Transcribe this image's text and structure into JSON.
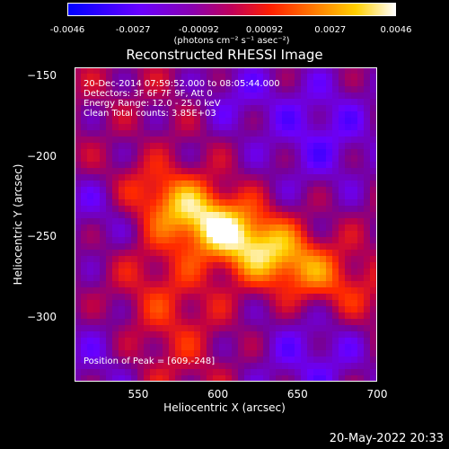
{
  "chart_data": {
    "type": "heatmap",
    "title": "Reconstructed RHESSI Image",
    "xlabel": "Heliocentric X (arcsec)",
    "ylabel": "Heliocentric Y (arcsec)",
    "xlim": [
      510,
      700
    ],
    "ylim": [
      -340,
      -145
    ],
    "x_ticks": [
      "550",
      "600",
      "650",
      "700"
    ],
    "y_ticks": [
      "-150",
      "-200",
      "-250",
      "-300"
    ],
    "colorbar": {
      "ticks": [
        "-0.0046",
        "-0.0027",
        "-0.00092",
        "0.00092",
        "0.0027",
        "0.0046"
      ],
      "unit": "(photons cm⁻² s⁻¹ asec⁻²)",
      "range": [
        -0.0046,
        0.0046
      ]
    },
    "annotations": {
      "time_range": "20-Dec-2014 07:59:52.000 to 08:05:44.000",
      "detectors": "Detectors: 3F 6F 7F 9F, Att 0",
      "energy_range": "Energy Range: 12.0 - 25.0 keV",
      "clean": "Clean     Total counts: 3.85E+03",
      "peak": "Position of Peak = [609,-248]"
    },
    "peak": [
      609,
      -248
    ],
    "colors": {
      "background": "#000000",
      "text": "#ffffff"
    }
  },
  "footer": {
    "timestamp": "20-May-2022 20:33"
  }
}
